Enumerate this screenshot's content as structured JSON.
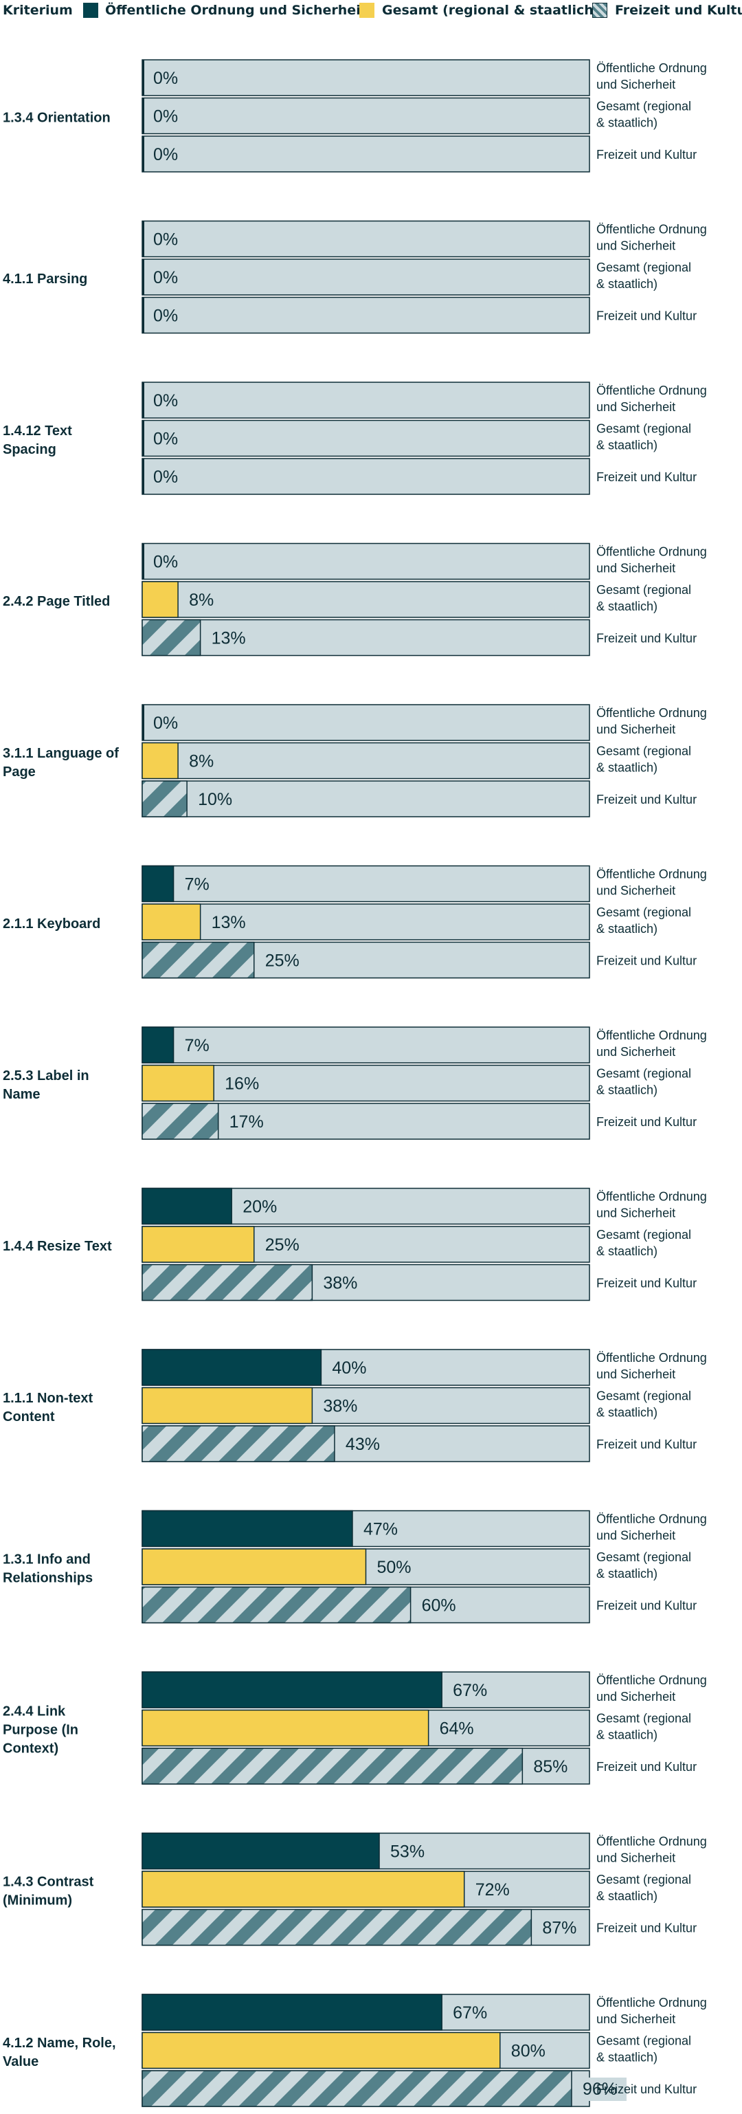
{
  "chart_data": {
    "type": "bar",
    "orientation": "horizontal",
    "xlim": [
      0,
      100
    ],
    "value_format": "{}%",
    "legend": {
      "header": "Kriterium",
      "entries": [
        {
          "name": "Öffentliche Ordnung und Sicherheit",
          "color": "#03434d",
          "pattern": "solid"
        },
        {
          "name": "Gesamt (regional & staatlich)",
          "color": "#f5d050",
          "pattern": "solid"
        },
        {
          "name": "Freizeit und Kultur",
          "color": "#54818a",
          "pattern": "diagonal-stripes"
        }
      ],
      "position": "top"
    },
    "series_row_labels": [
      [
        "Öffentliche Ordnung",
        "und Sicherheit"
      ],
      [
        "Gesamt (regional",
        "& staatlich)"
      ],
      [
        "Freizeit und Kultur"
      ]
    ],
    "background_color": "#ccdade",
    "groups": [
      {
        "label": [
          "1.3.4 Orientation"
        ],
        "values": [
          0,
          0,
          0
        ]
      },
      {
        "label": [
          "4.1.1 Parsing"
        ],
        "values": [
          0,
          0,
          0
        ]
      },
      {
        "label": [
          "1.4.12 Text",
          "Spacing"
        ],
        "values": [
          0,
          0,
          0
        ]
      },
      {
        "label": [
          "2.4.2 Page Titled"
        ],
        "values": [
          0,
          8,
          13
        ]
      },
      {
        "label": [
          "3.1.1 Language of",
          "Page"
        ],
        "values": [
          0,
          8,
          10
        ]
      },
      {
        "label": [
          "2.1.1 Keyboard"
        ],
        "values": [
          7,
          13,
          25
        ]
      },
      {
        "label": [
          "2.5.3 Label in",
          "Name"
        ],
        "values": [
          7,
          16,
          17
        ]
      },
      {
        "label": [
          "1.4.4 Resize Text"
        ],
        "values": [
          20,
          25,
          38
        ]
      },
      {
        "label": [
          "1.1.1 Non-text",
          "Content"
        ],
        "values": [
          40,
          38,
          43
        ]
      },
      {
        "label": [
          "1.3.1 Info and",
          "Relationships"
        ],
        "values": [
          47,
          50,
          60
        ]
      },
      {
        "label": [
          "2.4.4 Link",
          "Purpose (In",
          "Context)"
        ],
        "values": [
          67,
          64,
          85
        ]
      },
      {
        "label": [
          "1.4.3 Contrast",
          "(Minimum)"
        ],
        "values": [
          53,
          72,
          87
        ]
      },
      {
        "label": [
          "4.1.2 Name, Role,",
          "Value"
        ],
        "values": [
          67,
          80,
          96
        ]
      }
    ]
  }
}
